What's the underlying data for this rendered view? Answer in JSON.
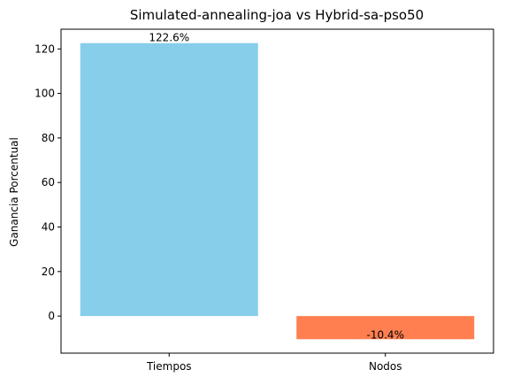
{
  "chart_data": {
    "type": "bar",
    "title": "Simulated-annealing-joa vs Hybrid-sa-pso50",
    "xlabel": "",
    "ylabel": "Ganancia Porcentual",
    "categories": [
      "Tiempos",
      "Nodos"
    ],
    "values": [
      122.6,
      -10.4
    ],
    "data_labels": [
      "122.6%",
      "-10.4%"
    ],
    "colors": [
      "#87ceeb",
      "#ff7f50"
    ],
    "ylim": [
      -16.65,
      128.85
    ],
    "yticks": [
      0,
      20,
      40,
      60,
      80,
      100,
      120
    ],
    "grid": false
  }
}
